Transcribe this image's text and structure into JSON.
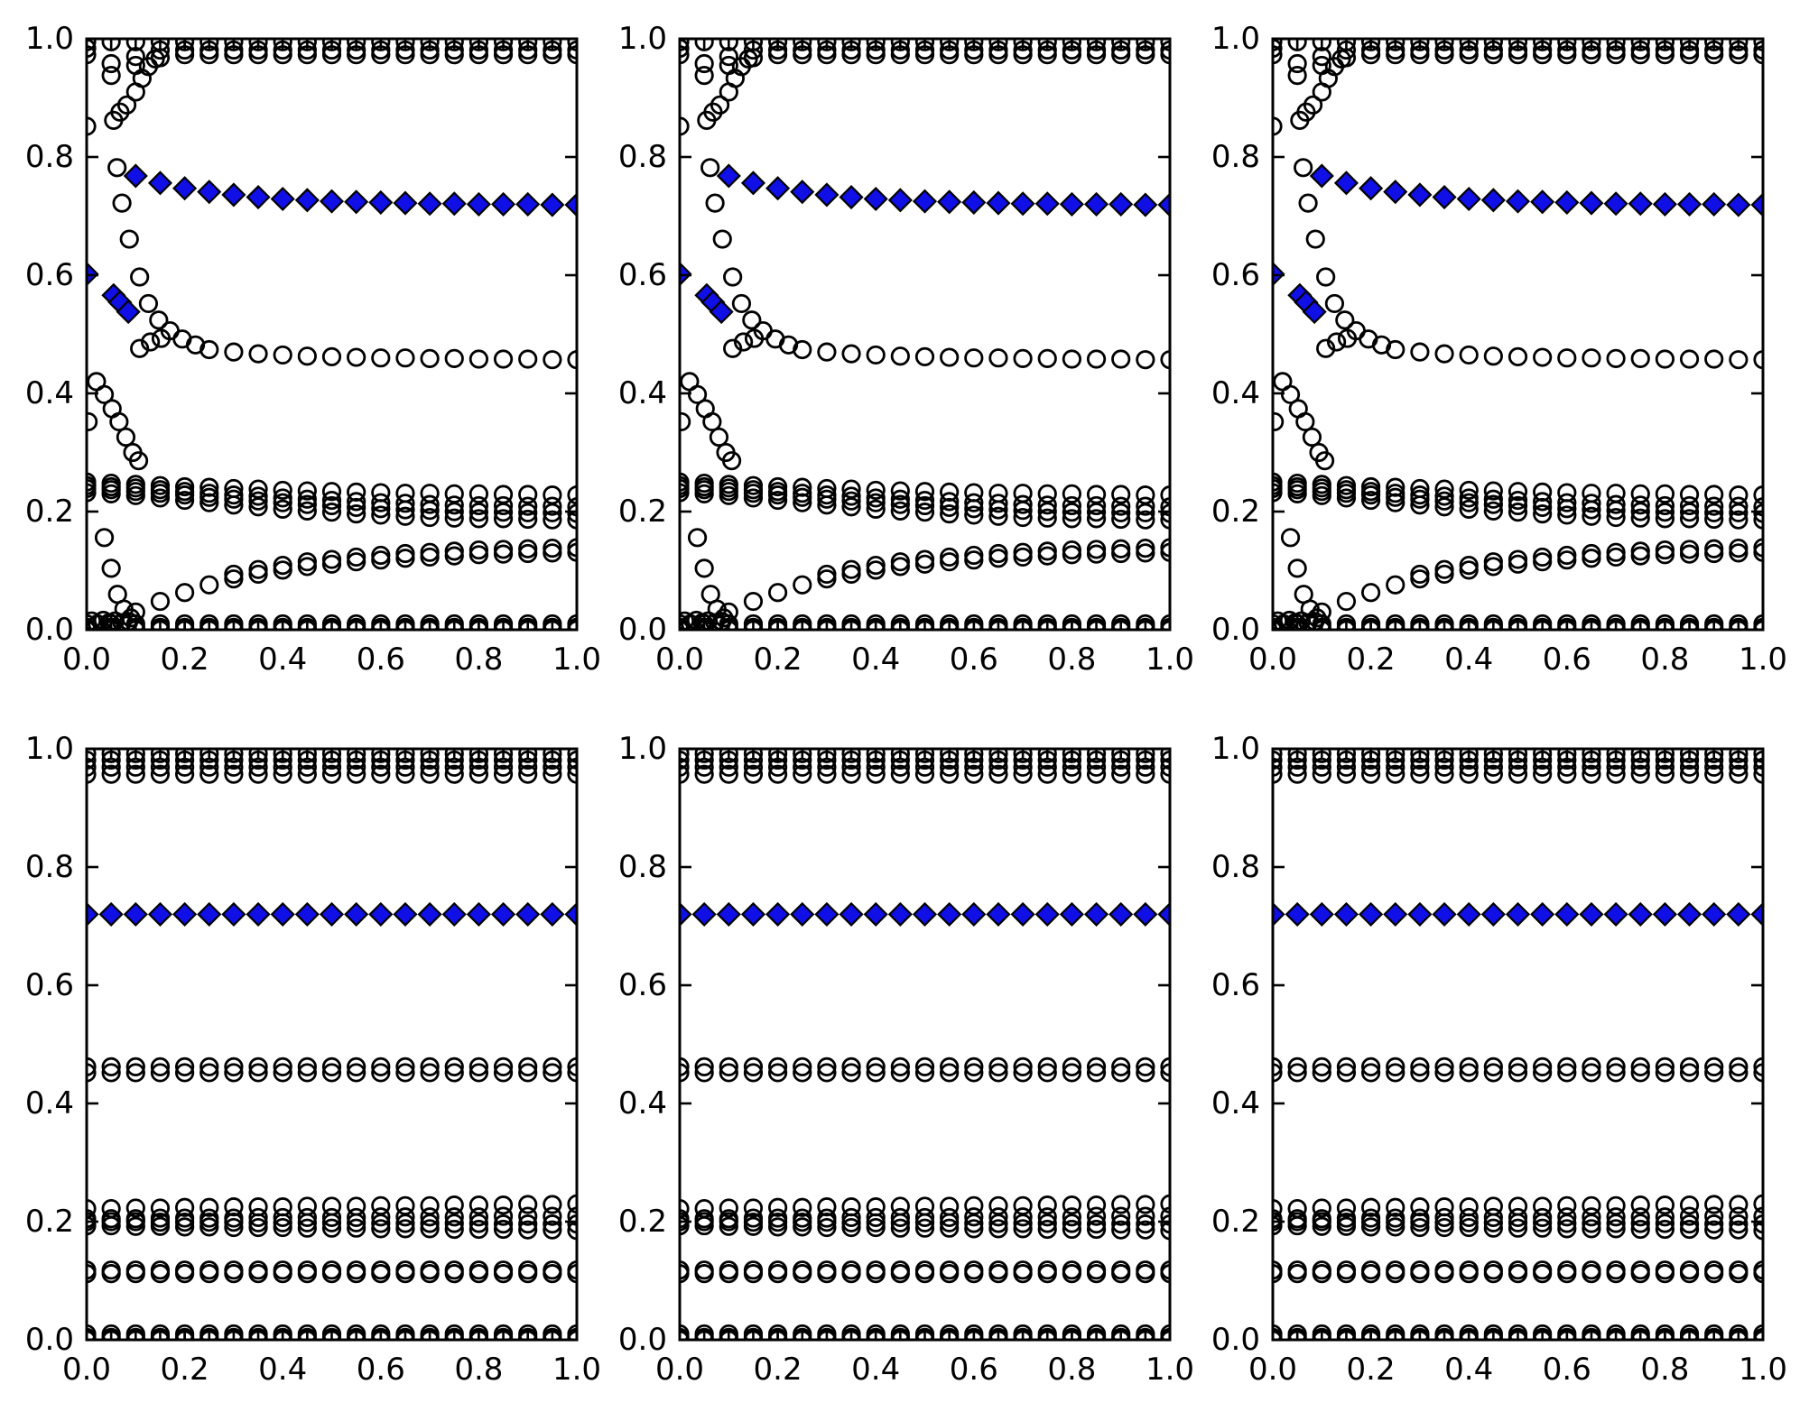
{
  "figure": {
    "background": "#ffffff",
    "rows": 2,
    "cols": 3
  },
  "style": {
    "marker_edge": "#000000",
    "diamond_fill": "#0f0fe6",
    "axis_color": "#000000",
    "tick_label_color": "#000000"
  },
  "chart_data": {
    "type": "scatter",
    "title": "",
    "xlabel": "",
    "ylabel": "",
    "grid": false,
    "legend": "none",
    "layout": {
      "rows": 2,
      "cols": 3,
      "note": "three identical columns; top row = transient to attractor, bottom row = steady-state bands"
    },
    "axes": {
      "xlim": [
        0.0,
        1.0
      ],
      "ylim": [
        0.0,
        1.0
      ],
      "xticks": [
        0.0,
        0.2,
        0.4,
        0.6,
        0.8,
        1.0
      ],
      "yticks": [
        0.0,
        0.2,
        0.4,
        0.6,
        0.8,
        1.0
      ],
      "xtick_labels": [
        "0.0",
        "0.2",
        "0.4",
        "0.6",
        "0.8",
        "1.0"
      ],
      "ytick_labels": [
        "0.0",
        "0.2",
        "0.4",
        "0.6",
        "0.8",
        "1.0"
      ],
      "tick_direction": "in",
      "ticks_all_sides": true
    },
    "subplots": [
      {
        "row": 0,
        "col": 0,
        "pattern": "top"
      },
      {
        "row": 0,
        "col": 1,
        "pattern": "top"
      },
      {
        "row": 0,
        "col": 2,
        "pattern": "top"
      },
      {
        "row": 1,
        "col": 0,
        "pattern": "bottom"
      },
      {
        "row": 1,
        "col": 1,
        "pattern": "bottom"
      },
      {
        "row": 1,
        "col": 2,
        "pattern": "bottom"
      }
    ],
    "patterns": {
      "top": {
        "series": [
          {
            "m": "p",
            "x0": 0.0,
            "dx": 0.05,
            "n": 21,
            "yc": 1.0
          },
          {
            "m": "c",
            "x0": 0.0,
            "dx": 0.05,
            "n": 21,
            "yc": 0.995
          },
          {
            "m": "c",
            "x0": 0.0,
            "dx": 0.05,
            "y": [
              0.984,
              0.958,
              0.97,
              0.981,
              0.981,
              0.981,
              0.981,
              0.981,
              0.981,
              0.981,
              0.981,
              0.981,
              0.981,
              0.981,
              0.981,
              0.981,
              0.981,
              0.981,
              0.981,
              0.981,
              0.981
            ]
          },
          {
            "m": "c",
            "x0": 0.0,
            "dx": 0.05,
            "y": [
              0.973,
              0.938,
              0.955,
              0.968,
              0.973,
              0.973,
              0.973,
              0.973,
              0.973,
              0.973,
              0.973,
              0.973,
              0.973,
              0.973,
              0.973,
              0.973,
              0.973,
              0.973,
              0.973,
              0.973,
              0.973
            ]
          },
          {
            "m": "c",
            "pts": [
              [
                0.0,
                0.852
              ],
              [
                0.055,
                0.862
              ],
              [
                0.068,
                0.876
              ],
              [
                0.082,
                0.888
              ],
              [
                0.1,
                0.91
              ],
              [
                0.113,
                0.933
              ],
              [
                0.126,
                0.953
              ],
              [
                0.14,
                0.966
              ]
            ]
          },
          {
            "m": "c",
            "pts": [
              [
                0.062,
                0.782
              ],
              [
                0.072,
                0.722
              ],
              [
                0.087,
                0.661
              ],
              [
                0.108,
                0.597
              ],
              [
                0.126,
                0.552
              ],
              [
                0.147,
                0.524
              ],
              [
                0.17,
                0.506
              ],
              [
                0.195,
                0.492
              ],
              [
                0.222,
                0.482
              ]
            ]
          },
          {
            "m": "c",
            "pts": [
              [
                0.108,
                0.476
              ],
              [
                0.13,
                0.487
              ],
              [
                0.152,
                0.493
              ]
            ]
          },
          {
            "m": "c",
            "x0": 0.25,
            "dx": 0.05,
            "y": [
              0.474,
              0.47,
              0.467,
              0.465,
              0.463,
              0.462,
              0.461,
              0.46,
              0.46,
              0.459,
              0.459,
              0.458,
              0.458,
              0.458,
              0.457,
              0.457
            ]
          },
          {
            "m": "c",
            "pts": [
              [
                0.02,
                0.42
              ],
              [
                0.036,
                0.398
              ],
              [
                0.052,
                0.374
              ],
              [
                0.066,
                0.352
              ],
              [
                0.08,
                0.326
              ],
              [
                0.094,
                0.3
              ],
              [
                0.106,
                0.286
              ]
            ]
          },
          {
            "m": "c",
            "pts": [
              [
                0.003,
                0.352
              ]
            ]
          },
          {
            "m": "c",
            "x0": 0.0,
            "dx": 0.05,
            "y": [
              0.25,
              0.248,
              0.246,
              0.244,
              0.242,
              0.241,
              0.239,
              0.238,
              0.236,
              0.235,
              0.234,
              0.233,
              0.232,
              0.231,
              0.231,
              0.23,
              0.23,
              0.229,
              0.229,
              0.228,
              0.228
            ]
          },
          {
            "m": "c",
            "x0": 0.0,
            "dx": 0.05,
            "y": [
              0.244,
              0.242,
              0.24,
              0.237,
              0.234,
              0.231,
              0.228,
              0.226,
              0.223,
              0.221,
              0.219,
              0.217,
              0.215,
              0.214,
              0.212,
              0.211,
              0.21,
              0.21,
              0.209,
              0.209,
              0.208
            ]
          },
          {
            "m": "c",
            "x0": 0.0,
            "dx": 0.05,
            "y": [
              0.239,
              0.237,
              0.234,
              0.231,
              0.228,
              0.224,
              0.221,
              0.218,
              0.215,
              0.212,
              0.21,
              0.207,
              0.205,
              0.203,
              0.202,
              0.2,
              0.199,
              0.199,
              0.198,
              0.198,
              0.197
            ]
          },
          {
            "m": "c",
            "x0": 0.0,
            "dx": 0.05,
            "y": [
              0.232,
              0.23,
              0.227,
              0.223,
              0.219,
              0.215,
              0.211,
              0.208,
              0.204,
              0.201,
              0.199,
              0.196,
              0.194,
              0.192,
              0.19,
              0.189,
              0.188,
              0.188,
              0.187,
              0.186,
              0.186
            ]
          },
          {
            "m": "c",
            "pts": [
              [
                0.036,
                0.156
              ],
              [
                0.05,
                0.104
              ],
              [
                0.063,
                0.06
              ],
              [
                0.076,
                0.035
              ],
              [
                0.09,
                0.02
              ]
            ]
          },
          {
            "m": "c",
            "x0": 0.1,
            "dx": 0.05,
            "y": [
              0.03,
              0.048,
              0.063,
              0.076,
              0.086,
              0.094,
              0.101,
              0.107,
              0.111,
              0.115,
              0.118,
              0.121,
              0.123,
              0.125,
              0.127,
              0.128,
              0.129,
              0.13,
              0.131
            ]
          },
          {
            "m": "c",
            "x0": 0.3,
            "dx": 0.05,
            "y": [
              0.094,
              0.102,
              0.109,
              0.115,
              0.119,
              0.123,
              0.126,
              0.129,
              0.131,
              0.133,
              0.135,
              0.136,
              0.137,
              0.138,
              0.139
            ]
          },
          {
            "m": "c",
            "x0": 0.0,
            "dx": 0.05,
            "n": 21,
            "yc": 0.01
          },
          {
            "m": "c",
            "x0": 0.0,
            "dx": 0.05,
            "n": 21,
            "yc": 0.004
          },
          {
            "m": "c",
            "x0": 0.0,
            "dx": 0.05,
            "n": 21,
            "yc": 0.0
          },
          {
            "m": "c",
            "pts": [
              [
                0.01,
                0.015
              ],
              [
                0.022,
                0.01
              ],
              [
                0.034,
                0.016
              ],
              [
                0.046,
                0.012
              ],
              [
                0.058,
                0.015
              ],
              [
                0.072,
                0.012
              ],
              [
                0.086,
                0.014
              ]
            ]
          },
          {
            "m": "p",
            "x0": 0.0,
            "dx": 0.05,
            "n": 21,
            "yc": 0.0
          },
          {
            "m": "d",
            "pts": [
              [
                0.0,
                0.602
              ],
              [
                0.055,
                0.566
              ],
              [
                0.068,
                0.554
              ],
              [
                0.085,
                0.538
              ]
            ]
          },
          {
            "m": "d",
            "x0": 0.1,
            "dx": 0.05,
            "y": [
              0.768,
              0.756,
              0.747,
              0.741,
              0.736,
              0.732,
              0.729,
              0.727,
              0.725,
              0.724,
              0.723,
              0.722,
              0.721,
              0.721,
              0.72,
              0.72,
              0.72,
              0.719,
              0.719
            ]
          }
        ]
      },
      "bottom": {
        "series": [
          {
            "m": "p",
            "x0": 0.0,
            "dx": 0.05,
            "n": 21,
            "yc": 1.0
          },
          {
            "m": "c",
            "x0": 0.0,
            "dx": 0.05,
            "n": 21,
            "yc": 0.992
          },
          {
            "m": "c",
            "x0": 0.0,
            "dx": 0.05,
            "n": 21,
            "yc": 0.981
          },
          {
            "m": "c",
            "x0": 0.0,
            "dx": 0.05,
            "n": 21,
            "yc": 0.969
          },
          {
            "m": "c",
            "x0": 0.0,
            "dx": 0.05,
            "n": 21,
            "yc": 0.957
          },
          {
            "m": "d",
            "x0": 0.0,
            "dx": 0.05,
            "n": 21,
            "yc": 0.72
          },
          {
            "m": "c",
            "x0": 0.0,
            "dx": 0.05,
            "n": 21,
            "yc": 0.462
          },
          {
            "m": "c",
            "x0": 0.0,
            "dx": 0.05,
            "n": 21,
            "yc": 0.452
          },
          {
            "m": "c",
            "x0": 0.0,
            "dx": 0.05,
            "y": [
              0.222,
              0.222,
              0.223,
              0.223,
              0.224,
              0.224,
              0.225,
              0.225,
              0.225,
              0.226,
              0.226,
              0.226,
              0.227,
              0.227,
              0.227,
              0.228,
              0.228,
              0.228,
              0.229,
              0.229,
              0.23
            ]
          },
          {
            "m": "c",
            "x0": 0.0,
            "dx": 0.05,
            "y": [
              0.205,
              0.205,
              0.205,
              0.206,
              0.206,
              0.206,
              0.206,
              0.207,
              0.207,
              0.207,
              0.207,
              0.207,
              0.208,
              0.208,
              0.208,
              0.208,
              0.208,
              0.209,
              0.209,
              0.209,
              0.209
            ]
          },
          {
            "m": "c",
            "x0": 0.0,
            "dx": 0.05,
            "y": [
              0.2,
              0.2,
              0.2,
              0.199,
              0.199,
              0.199,
              0.199,
              0.198,
              0.198,
              0.198,
              0.198,
              0.198,
              0.197,
              0.197,
              0.197,
              0.197,
              0.197,
              0.196,
              0.196,
              0.196,
              0.196
            ]
          },
          {
            "m": "c",
            "x0": 0.0,
            "dx": 0.05,
            "y": [
              0.193,
              0.193,
              0.192,
              0.192,
              0.191,
              0.191,
              0.19,
              0.19,
              0.19,
              0.189,
              0.189,
              0.189,
              0.188,
              0.188,
              0.188,
              0.187,
              0.187,
              0.187,
              0.186,
              0.186,
              0.185
            ]
          },
          {
            "m": "c",
            "x0": 0.0,
            "dx": 0.05,
            "n": 21,
            "yc": 0.118
          },
          {
            "m": "c",
            "x0": 0.0,
            "dx": 0.05,
            "n": 21,
            "yc": 0.112
          },
          {
            "m": "c",
            "x0": 0.0,
            "dx": 0.05,
            "n": 21,
            "yc": 0.01
          },
          {
            "m": "c",
            "x0": 0.0,
            "dx": 0.05,
            "n": 21,
            "yc": 0.004
          },
          {
            "m": "c",
            "x0": 0.0,
            "dx": 0.05,
            "n": 21,
            "yc": 0.0
          },
          {
            "m": "p",
            "x0": 0.0,
            "dx": 0.05,
            "n": 21,
            "yc": 0.0
          }
        ]
      }
    }
  }
}
